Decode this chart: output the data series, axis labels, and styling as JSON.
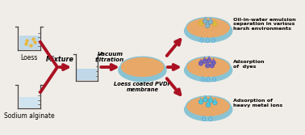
{
  "bg_color": "#f0ede8",
  "beaker1_label": "Loess",
  "beaker2_label": "Sodium alginate",
  "mixture_label": "Mixture",
  "filtration_label": "Vacuum\nfiltration",
  "membrane_label": "Loess coated PVDF\nmembrane",
  "app1_label": "Oil-in-water emulsion\nseparation in various\nharsh environments",
  "app2_label": "Adsorption\nof  dyes",
  "app3_label": "Adsorption of\nheavy metal ions",
  "arrow_color": "#aa1122",
  "membrane_fill": "#e8a868",
  "membrane_edge": "#8ac4d4",
  "beaker_outline": "#444444",
  "water_color": "#c0d8e8",
  "water_color2": "#d0e4f0",
  "loess_color": "#e8b840",
  "drop_color": "#88ccee",
  "drop_dark": "#4499bb",
  "dye_color1": "#7766bb",
  "dye_color2": "#5544aa",
  "oil_color1": "#ddbb44",
  "oil_color2": "#88bbcc",
  "metal_color": "#55ccdd"
}
